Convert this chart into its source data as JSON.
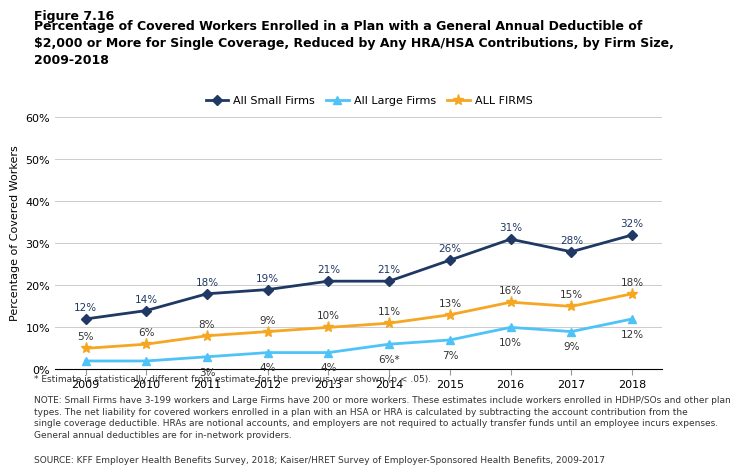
{
  "years": [
    2009,
    2010,
    2011,
    2012,
    2013,
    2014,
    2015,
    2016,
    2017,
    2018
  ],
  "all_small_firms": [
    0.12,
    0.14,
    0.18,
    0.19,
    0.21,
    0.21,
    0.26,
    0.31,
    0.28,
    0.32
  ],
  "all_large_firms": [
    0.02,
    0.02,
    0.03,
    0.04,
    0.04,
    0.06,
    0.07,
    0.1,
    0.09,
    0.12
  ],
  "all_firms": [
    0.05,
    0.06,
    0.08,
    0.09,
    0.1,
    0.11,
    0.13,
    0.16,
    0.15,
    0.18
  ],
  "small_labels": [
    "12%",
    "14%",
    "18%",
    "19%",
    "21%",
    "21%",
    "26%",
    "31%",
    "28%",
    "32%"
  ],
  "large_labels": [
    "",
    "",
    "3%",
    "4%",
    "4%",
    "6%*",
    "7%",
    "10%",
    "9%",
    "12%"
  ],
  "all_labels": [
    "5%",
    "6%",
    "8%",
    "9%",
    "10%",
    "11%",
    "13%",
    "16%",
    "15%",
    "18%"
  ],
  "color_small": "#1f3864",
  "color_large": "#4fc3f7",
  "color_all": "#f5a623",
  "legend_labels": [
    "All Small Firms",
    "All Large Firms",
    "ALL FIRMS"
  ],
  "ylabel": "Percentage of Covered Workers",
  "title_figure": "Figure 7.16",
  "title_main": "Percentage of Covered Workers Enrolled in a Plan with a General Annual Deductible of\n$2,000 or More for Single Coverage, Reduced by Any HRA/HSA Contributions, by Firm Size,\n2009-2018",
  "footnote1": "* Estimate is statistically different from estimate for the previous year shown (p < .05).",
  "footnote2": "NOTE: Small Firms have 3-199 workers and Large Firms have 200 or more workers. These estimates include workers enrolled in HDHP/SOs and other plan\ntypes. The net liability for covered workers enrolled in a plan with an HSA or HRA is calculated by subtracting the account contribution from the\nsingle coverage deductible. HRAs are notional accounts, and employers are not required to actually transfer funds until an employee incurs expenses.\nGeneral annual deductibles are for in-network providers.",
  "footnote3": "SOURCE: KFF Employer Health Benefits Survey, 2018; Kaiser/HRET Survey of Employer-Sponsored Health Benefits, 2009-2017",
  "ylim": [
    0,
    0.65
  ],
  "yticks": [
    0,
    0.1,
    0.2,
    0.3,
    0.4,
    0.5,
    0.6
  ],
  "ytick_labels": [
    "0%",
    "10%",
    "20%",
    "30%",
    "40%",
    "50%",
    "60%"
  ]
}
